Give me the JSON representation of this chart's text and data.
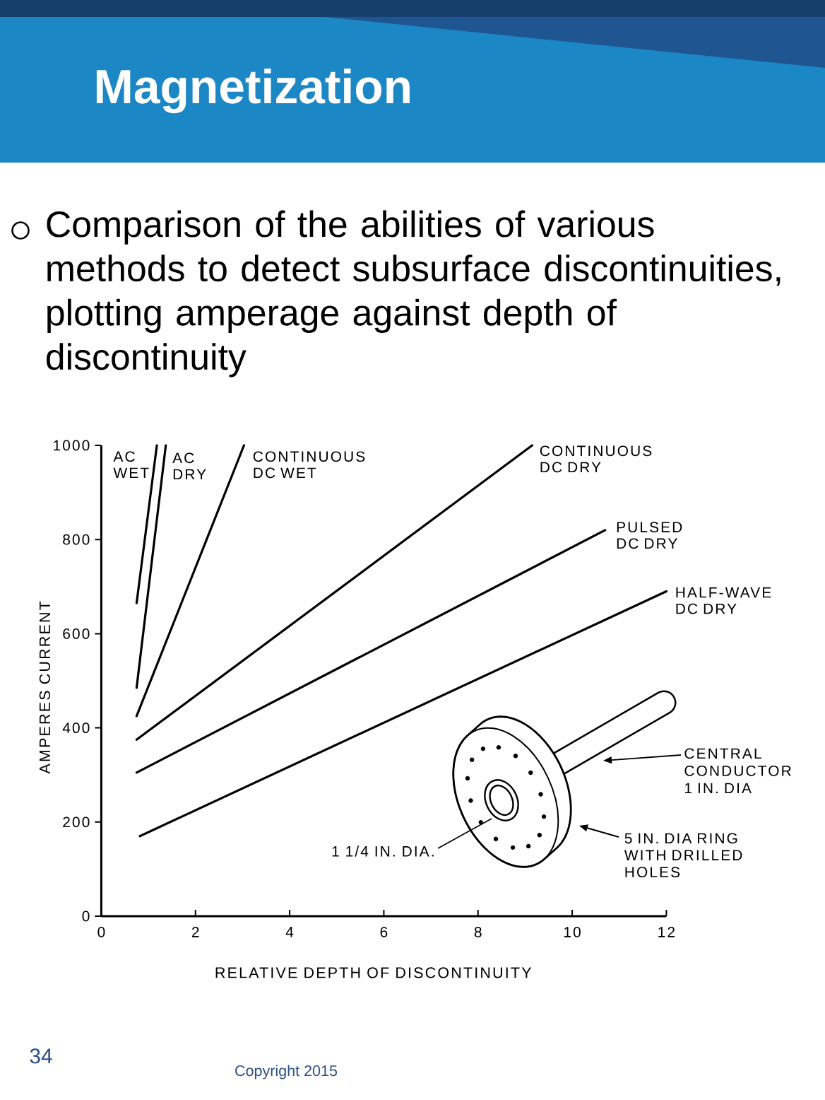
{
  "chart_data": {
    "type": "line",
    "title": "Magnetization",
    "subtitle": "Comparison of the abilities of various methods to detect subsurface discontinuities, plotting amperage against depth of discontinuity",
    "xlabel": "RELATIVE DEPTH OF DISCONTINUITY",
    "ylabel": "AMPERES CURRENT",
    "xlim": [
      0,
      12
    ],
    "ylim": [
      0,
      1000
    ],
    "xticks": [
      0,
      2,
      4,
      6,
      8,
      10,
      12
    ],
    "yticks": [
      0,
      200,
      400,
      600,
      800,
      1000
    ],
    "marker": "none",
    "line_style": "solid",
    "series": [
      {
        "name": "AC WET",
        "color": "#000000",
        "x": [
          0.75,
          1.18
        ],
        "values": [
          665,
          1000
        ]
      },
      {
        "name": "AC DRY",
        "color": "#000000",
        "x": [
          0.75,
          1.37
        ],
        "values": [
          485,
          1000
        ]
      },
      {
        "name": "CONTINUOUS DC WET",
        "color": "#000000",
        "x": [
          0.75,
          3.03
        ],
        "values": [
          425,
          1000
        ]
      },
      {
        "name": "CONTINUOUS DC DRY",
        "color": "#000000",
        "x": [
          0.75,
          9.15
        ],
        "values": [
          375,
          1000
        ]
      },
      {
        "name": "PULSED DC DRY",
        "color": "#000000",
        "x": [
          0.75,
          10.7
        ],
        "values": [
          305,
          820
        ]
      },
      {
        "name": "HALF-WAVE DC DRY",
        "color": "#000000",
        "x": [
          0.82,
          12
        ],
        "values": [
          170,
          690
        ]
      }
    ],
    "annotations": [
      "1 1/4 IN. DIA.",
      "CENTRAL CONDUCTOR 1 IN. DIA",
      "5 IN. DIA RING WITH DRILLED HOLES",
      "34",
      "Copyright 2015"
    ]
  }
}
